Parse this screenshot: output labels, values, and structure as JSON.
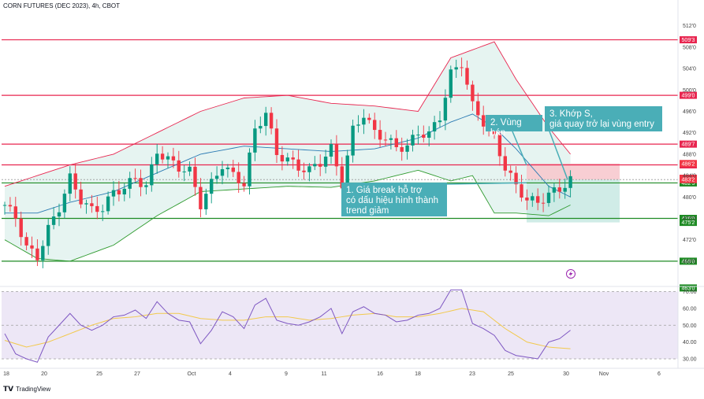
{
  "header": {
    "title": "CORN FUTURES (DEC 2023), 4h, CBOT"
  },
  "footer": {
    "brand": "TradingView"
  },
  "annotations": [
    {
      "name": "annotation-1",
      "lines": [
        "1. Giá break hỗ trợ",
        "có dấu hiệu hình thành",
        "trend giảm"
      ]
    },
    {
      "name": "annotation-2",
      "lines": [
        "2. Vùng bán"
      ]
    },
    {
      "name": "annotation-3",
      "lines": [
        "3. Khớp S,",
        "giá quay trở lại vùng entry"
      ]
    }
  ],
  "colors": {
    "up": "#089981",
    "down": "#f23645",
    "resistance": "#e8254f",
    "support": "#1e8b24",
    "bb_upper": "#e8254f",
    "bb_lower": "#2e9a2e",
    "bb_basis": "#2a7ab3",
    "bb_fill": "#e6f4f1",
    "rsi_line": "#7e57c2",
    "rsi_ma": "#f2c94c",
    "rsi_band": "#ede7f6",
    "callout": "#4aaeb7",
    "short_stop": "#f7c6cb",
    "short_target": "#c8e9e3"
  },
  "chart_data": [
    {
      "type": "candlestick",
      "title": "CORN FUTURES (DEC 2023), 4h, CBOT",
      "x_tick_labels": [
        "18",
        "20",
        "25",
        "27",
        "Oct",
        "4",
        "9",
        "11",
        "16",
        "18",
        "23",
        "25",
        "30",
        "Nov",
        "6"
      ],
      "y_tick_labels": [
        "512'0",
        "508'0",
        "504'0",
        "500'0",
        "496'0",
        "492'0",
        "488'0",
        "484'0",
        "480'0",
        "476'0",
        "472'0",
        "468'0",
        "463'0"
      ],
      "ylim": [
        461,
        513
      ],
      "horizontal_levels": [
        {
          "label": "509'3",
          "value": 509.375,
          "kind": "resistance"
        },
        {
          "label": "499'0",
          "value": 499.0,
          "kind": "resistance"
        },
        {
          "label": "489'7",
          "value": 489.875,
          "kind": "resistance"
        },
        {
          "label": "486'0",
          "value": 486.0,
          "kind": "resistance"
        },
        {
          "label": "482'5",
          "value": 482.625,
          "kind": "support"
        },
        {
          "label": "476'0",
          "value": 476.0,
          "kind": "support"
        },
        {
          "label": "468'0",
          "value": 468.0,
          "kind": "support"
        }
      ],
      "price_markers": [
        {
          "label": "486'2",
          "value": 486.25,
          "color": "#f23645"
        },
        {
          "label": "483'4",
          "value": 483.5,
          "color": "#f23645"
        },
        {
          "label": "483'2",
          "value": 483.25,
          "color": "#f23645"
        },
        {
          "label": "475'2",
          "value": 475.25,
          "color": "#1e8b24"
        },
        {
          "label": "463'0",
          "value": 463.0,
          "color": "#1e8b24"
        }
      ],
      "short_position": {
        "entry": 483.25,
        "stop": 486.25,
        "target": 475.25
      },
      "close_path": [
        [
          0,
          478.5
        ],
        [
          2,
          476.2
        ],
        [
          4,
          470.5
        ],
        [
          6,
          468.8
        ],
        [
          8,
          474.0
        ],
        [
          10,
          478.0
        ],
        [
          12,
          483.5
        ],
        [
          14,
          479.5
        ],
        [
          16,
          477.5
        ],
        [
          18,
          478.0
        ],
        [
          20,
          480.8
        ],
        [
          22,
          481.8
        ],
        [
          24,
          483.5
        ],
        [
          26,
          482.0
        ],
        [
          28,
          488.5
        ],
        [
          30,
          487.0
        ],
        [
          32,
          485.5
        ],
        [
          34,
          484.8
        ],
        [
          36,
          478.6
        ],
        [
          38,
          482.5
        ],
        [
          40,
          486.0
        ],
        [
          42,
          484.0
        ],
        [
          44,
          482.5
        ],
        [
          46,
          492.5
        ],
        [
          48,
          495.8
        ],
        [
          50,
          488.0
        ],
        [
          52,
          487.0
        ],
        [
          54,
          485.5
        ],
        [
          56,
          485.0
        ],
        [
          58,
          486.5
        ],
        [
          60,
          489.0
        ],
        [
          62,
          482.5
        ],
        [
          64,
          492.5
        ],
        [
          66,
          495.5
        ],
        [
          68,
          492.0
        ],
        [
          70,
          491.0
        ],
        [
          72,
          489.2
        ],
        [
          74,
          489.5
        ],
        [
          76,
          492.0
        ],
        [
          78,
          491.7
        ],
        [
          80,
          495.0
        ],
        [
          82,
          503.0
        ],
        [
          84,
          505.0
        ],
        [
          86,
          497.0
        ],
        [
          88,
          494.0
        ],
        [
          90,
          491.0
        ],
        [
          92,
          485.5
        ],
        [
          94,
          482.0
        ],
        [
          96,
          479.5
        ],
        [
          98,
          479.0
        ],
        [
          100,
          480.5
        ],
        [
          102,
          481.5
        ],
        [
          104,
          483.2
        ]
      ],
      "bollinger_bands": {
        "upper": [
          [
            0,
            482
          ],
          [
            6,
            484
          ],
          [
            12,
            486
          ],
          [
            20,
            488
          ],
          [
            28,
            492
          ],
          [
            36,
            496
          ],
          [
            44,
            498.5
          ],
          [
            52,
            499
          ],
          [
            60,
            497.5
          ],
          [
            68,
            497
          ],
          [
            76,
            496
          ],
          [
            82,
            506
          ],
          [
            86,
            507.5
          ],
          [
            90,
            509
          ],
          [
            94,
            502
          ],
          [
            100,
            493
          ],
          [
            104,
            488
          ]
        ],
        "basis": [
          [
            0,
            477
          ],
          [
            6,
            477
          ],
          [
            12,
            479
          ],
          [
            20,
            481
          ],
          [
            28,
            484.5
          ],
          [
            36,
            488
          ],
          [
            44,
            489.5
          ],
          [
            52,
            489
          ],
          [
            60,
            488.5
          ],
          [
            68,
            489
          ],
          [
            76,
            491
          ],
          [
            82,
            494
          ],
          [
            86,
            495.5
          ],
          [
            90,
            493
          ],
          [
            94,
            489
          ],
          [
            100,
            482
          ],
          [
            104,
            480
          ]
        ],
        "lower": [
          [
            0,
            472
          ],
          [
            6,
            468.5
          ],
          [
            12,
            468
          ],
          [
            20,
            471
          ],
          [
            28,
            476.5
          ],
          [
            36,
            481
          ],
          [
            44,
            481.5
          ],
          [
            52,
            482
          ],
          [
            60,
            481.8
          ],
          [
            68,
            483
          ],
          [
            76,
            485
          ],
          [
            82,
            483
          ],
          [
            86,
            484
          ],
          [
            90,
            477
          ],
          [
            94,
            477
          ],
          [
            100,
            476.5
          ],
          [
            104,
            478.5
          ]
        ]
      }
    },
    {
      "type": "line",
      "title": "RSI",
      "y_tick_labels": [
        "70.00",
        "60.00",
        "50.00",
        "40.00",
        "30.00"
      ],
      "ylim": [
        29,
        72
      ],
      "band": [
        30,
        70
      ],
      "midline": 50,
      "rsi_path": [
        [
          0,
          45
        ],
        [
          2,
          33
        ],
        [
          4,
          30
        ],
        [
          6,
          28
        ],
        [
          8,
          43
        ],
        [
          10,
          50
        ],
        [
          12,
          57
        ],
        [
          14,
          50
        ],
        [
          16,
          47
        ],
        [
          18,
          50
        ],
        [
          20,
          55
        ],
        [
          22,
          56
        ],
        [
          24,
          59
        ],
        [
          26,
          54
        ],
        [
          28,
          64
        ],
        [
          30,
          57
        ],
        [
          32,
          53
        ],
        [
          34,
          52
        ],
        [
          36,
          39
        ],
        [
          38,
          47
        ],
        [
          40,
          58
        ],
        [
          42,
          55
        ],
        [
          44,
          48
        ],
        [
          46,
          62
        ],
        [
          48,
          66
        ],
        [
          50,
          53
        ],
        [
          52,
          51
        ],
        [
          54,
          50
        ],
        [
          56,
          52
        ],
        [
          58,
          55
        ],
        [
          60,
          60
        ],
        [
          62,
          45
        ],
        [
          64,
          58
        ],
        [
          66,
          61
        ],
        [
          68,
          57
        ],
        [
          70,
          56
        ],
        [
          72,
          52
        ],
        [
          74,
          53
        ],
        [
          76,
          56
        ],
        [
          78,
          57
        ],
        [
          80,
          60
        ],
        [
          82,
          71
        ],
        [
          84,
          71
        ],
        [
          86,
          51
        ],
        [
          88,
          48
        ],
        [
          90,
          44
        ],
        [
          92,
          35
        ],
        [
          94,
          32
        ],
        [
          96,
          31
        ],
        [
          98,
          30
        ],
        [
          100,
          40
        ],
        [
          102,
          42
        ],
        [
          104,
          47
        ]
      ],
      "rsi_ma_path": [
        [
          0,
          41
        ],
        [
          4,
          37
        ],
        [
          8,
          40
        ],
        [
          12,
          45
        ],
        [
          16,
          50
        ],
        [
          20,
          54
        ],
        [
          24,
          55
        ],
        [
          28,
          57
        ],
        [
          32,
          57
        ],
        [
          36,
          54
        ],
        [
          40,
          53
        ],
        [
          44,
          53
        ],
        [
          48,
          55
        ],
        [
          52,
          55
        ],
        [
          56,
          53
        ],
        [
          60,
          54
        ],
        [
          64,
          56
        ],
        [
          68,
          57
        ],
        [
          72,
          55
        ],
        [
          76,
          55
        ],
        [
          80,
          57
        ],
        [
          84,
          60
        ],
        [
          88,
          58
        ],
        [
          92,
          48
        ],
        [
          96,
          40
        ],
        [
          100,
          37
        ],
        [
          104,
          36
        ]
      ]
    }
  ]
}
